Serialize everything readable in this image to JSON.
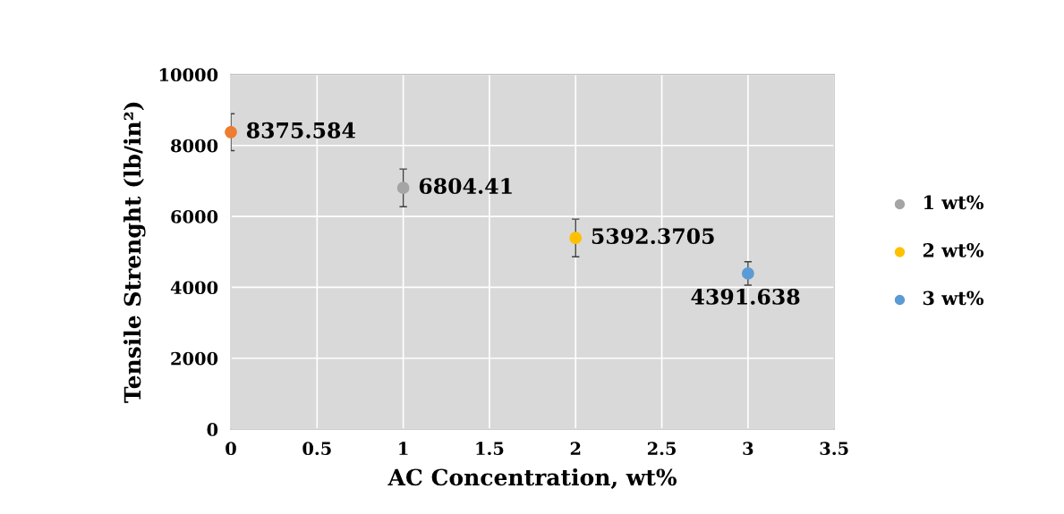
{
  "chart_data": {
    "type": "scatter",
    "xlabel": "AC Concentration, wt%",
    "ylabel": "Tensile Strenght (lb/in²)",
    "series": [
      {
        "color": "#ed7d31",
        "x": [
          0
        ],
        "values": [
          8375.584
        ],
        "errors": [
          520
        ],
        "value_labels": [
          "8375.584"
        ]
      },
      {
        "name": "1 wt%",
        "color": "#a5a5a5",
        "x": [
          1
        ],
        "values": [
          6804.41
        ],
        "errors": [
          530
        ],
        "value_labels": [
          "6804.41"
        ]
      },
      {
        "name": "2 wt%",
        "color": "#ffc000",
        "x": [
          2
        ],
        "values": [
          5392.3705
        ],
        "errors": [
          530
        ],
        "value_labels": [
          "5392.3705"
        ]
      },
      {
        "name": "3 wt%",
        "color": "#5b9bd5",
        "x": [
          3
        ],
        "values": [
          4391.638
        ],
        "errors": [
          330
        ],
        "value_labels": [
          "4391.638"
        ]
      }
    ],
    "xlim": [
      0,
      3.5
    ],
    "xticks": [
      0,
      0.5,
      1,
      1.5,
      2,
      2.5,
      3,
      3.5
    ],
    "ylim": [
      0,
      10000
    ],
    "yticks": [
      0,
      2000,
      4000,
      6000,
      8000,
      10000
    ],
    "grid": true,
    "legend": "right",
    "marker": "circle"
  }
}
